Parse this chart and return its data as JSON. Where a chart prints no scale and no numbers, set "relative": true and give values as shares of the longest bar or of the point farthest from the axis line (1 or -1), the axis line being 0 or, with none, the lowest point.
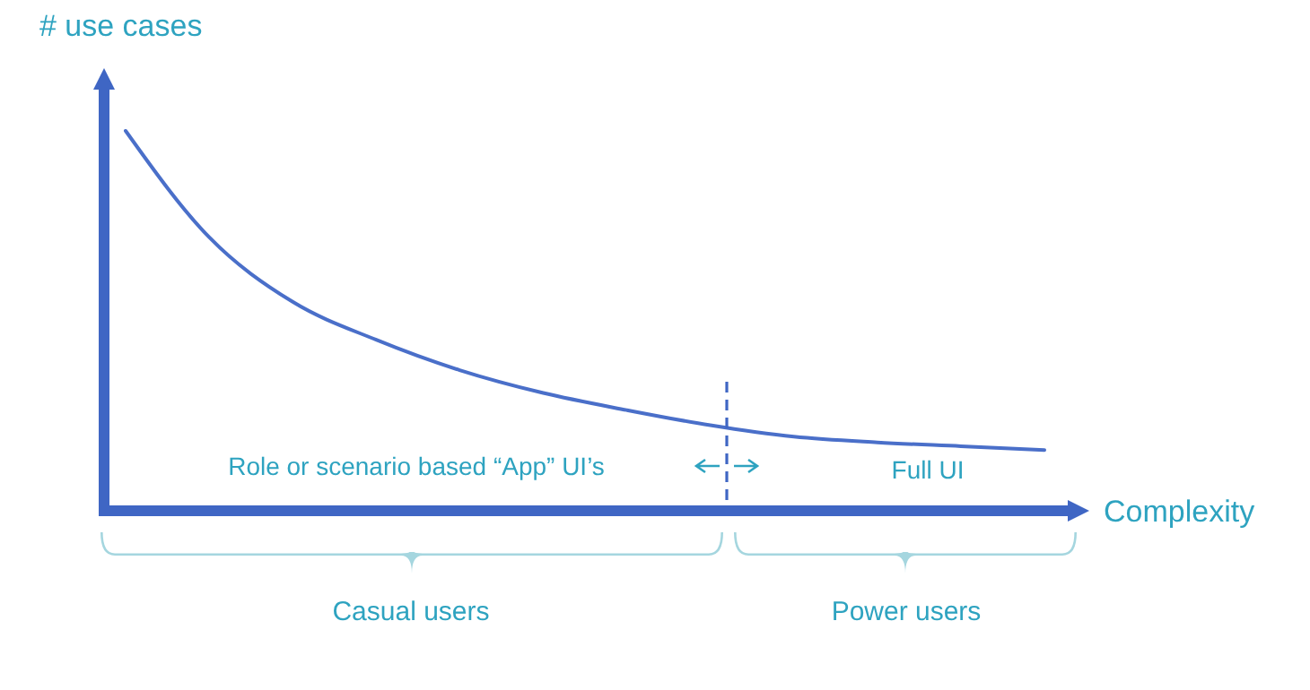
{
  "chart_data": {
    "type": "line",
    "relative": true,
    "xlabel": "Complexity",
    "ylabel": "# use cases",
    "categories": [
      null,
      null,
      null,
      null,
      null,
      null,
      null,
      null,
      null,
      null,
      null,
      null
    ],
    "series": [
      {
        "color": "#4a6fc9",
        "values": [
          1.0,
          0.72,
          0.55,
          0.45,
          0.37,
          0.31,
          0.265,
          0.225,
          0.195,
          0.18,
          0.17,
          0.16
        ]
      }
    ],
    "annotations": [
      "Role or scenario based “App” UI’s",
      "Full UI",
      "Casual users",
      "Power users"
    ],
    "marker": "none",
    "line_style": "solid"
  }
}
